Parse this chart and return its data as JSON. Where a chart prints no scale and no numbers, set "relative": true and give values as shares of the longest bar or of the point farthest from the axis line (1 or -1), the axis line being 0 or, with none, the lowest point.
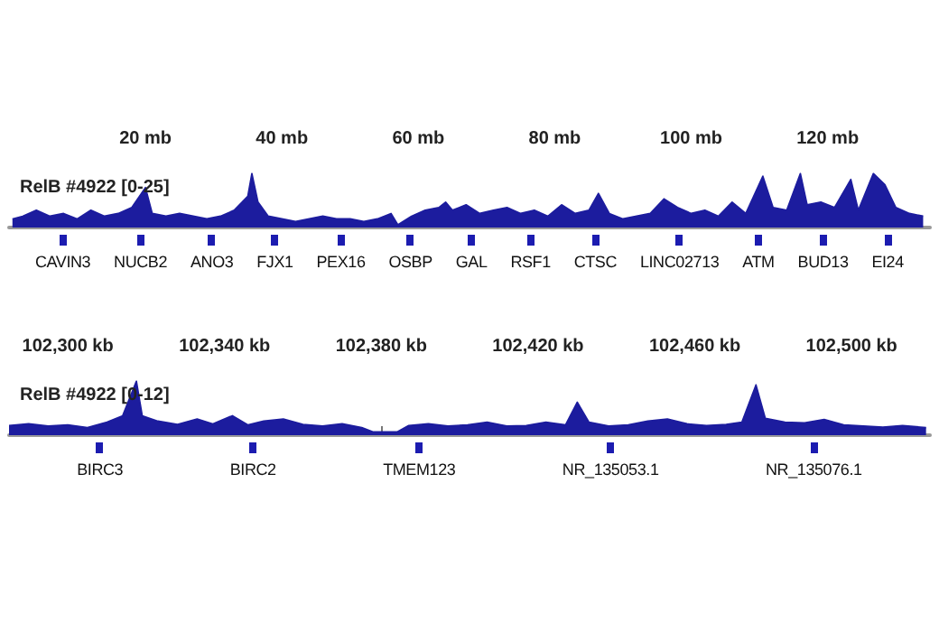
{
  "chart_data": [
    {
      "type": "area",
      "title": "RelB #4922 [0-25]",
      "tick_labels": "x",
      "relative": true,
      "xlim": [
        0,
        135
      ],
      "xticks": [
        {
          "value": 10,
          "label": null
        },
        {
          "value": 20,
          "label": "20 mb"
        },
        {
          "value": 30,
          "label": null
        },
        {
          "value": 40,
          "label": "40 mb"
        },
        {
          "value": 50,
          "label": null
        },
        {
          "value": 60,
          "label": "60 mb"
        },
        {
          "value": 70,
          "label": null
        },
        {
          "value": 80,
          "label": "80 mb"
        },
        {
          "value": 90,
          "label": null
        },
        {
          "value": 100,
          "label": "100 mb"
        },
        {
          "value": 110,
          "label": null
        },
        {
          "value": 120,
          "label": "120 mb"
        },
        {
          "value": 130,
          "label": null
        }
      ],
      "series": [
        {
          "color": "#1c1c9e",
          "x": [
            0.5,
            2,
            4,
            6,
            8,
            10,
            12,
            14,
            16,
            18,
            20,
            21,
            23,
            25,
            27,
            29,
            31,
            33,
            35,
            35.6,
            36.5,
            38,
            40,
            42,
            44,
            46,
            48,
            50,
            52,
            54,
            56,
            57,
            59,
            61,
            63,
            64,
            65,
            67,
            69,
            71,
            73,
            75,
            77,
            79,
            81,
            83,
            85,
            86.4,
            88,
            90,
            92,
            94,
            96,
            98,
            100,
            102,
            104,
            106,
            108,
            110.5,
            112,
            114,
            116,
            117,
            119,
            121,
            123.4,
            124.5,
            126.7,
            128.4,
            130,
            132,
            134
          ],
          "values": [
            0.16,
            0.21,
            0.32,
            0.21,
            0.26,
            0.16,
            0.32,
            0.21,
            0.26,
            0.37,
            0.74,
            0.26,
            0.21,
            0.26,
            0.21,
            0.16,
            0.21,
            0.32,
            0.58,
            1,
            0.47,
            0.21,
            0.16,
            0.11,
            0.16,
            0.21,
            0.16,
            0.16,
            0.11,
            0.16,
            0.26,
            0.05,
            0.21,
            0.32,
            0.37,
            0.47,
            0.32,
            0.42,
            0.26,
            0.32,
            0.37,
            0.26,
            0.32,
            0.21,
            0.42,
            0.26,
            0.32,
            0.63,
            0.26,
            0.16,
            0.21,
            0.26,
            0.53,
            0.37,
            0.26,
            0.32,
            0.21,
            0.47,
            0.26,
            0.95,
            0.37,
            0.32,
            1,
            0.42,
            0.47,
            0.37,
            0.89,
            0.32,
            1,
            0.79,
            0.37,
            0.26,
            0.21
          ]
        }
      ],
      "annotations": [
        "CAVIN3",
        "NUCB2",
        "ANO3",
        "FJX1",
        "PEX16",
        "OSBP",
        "GAL",
        "RSF1",
        "CTSC",
        "LINC02713",
        "ATM",
        "BUD13",
        "EI24"
      ]
    },
    {
      "type": "area",
      "title": "RelB #4922 [0-12]",
      "tick_labels": "x",
      "relative": true,
      "xlim": [
        102285,
        102520
      ],
      "xticks": [
        {
          "value": 102290,
          "label": null
        },
        {
          "value": 102300,
          "label": "102,300 kb"
        },
        {
          "value": 102310,
          "label": null
        },
        {
          "value": 102320,
          "label": null
        },
        {
          "value": 102330,
          "label": null
        },
        {
          "value": 102340,
          "label": "102,340 kb"
        },
        {
          "value": 102350,
          "label": null
        },
        {
          "value": 102360,
          "label": null
        },
        {
          "value": 102370,
          "label": null
        },
        {
          "value": 102380,
          "label": "102,380 kb"
        },
        {
          "value": 102390,
          "label": null
        },
        {
          "value": 102400,
          "label": null
        },
        {
          "value": 102410,
          "label": null
        },
        {
          "value": 102420,
          "label": "102,420 kb"
        },
        {
          "value": 102430,
          "label": null
        },
        {
          "value": 102440,
          "label": null
        },
        {
          "value": 102450,
          "label": null
        },
        {
          "value": 102460,
          "label": "102,460 kb"
        },
        {
          "value": 102470,
          "label": null
        },
        {
          "value": 102480,
          "label": null
        },
        {
          "value": 102490,
          "label": null
        },
        {
          "value": 102500,
          "label": "102,500 kb"
        },
        {
          "value": 102510,
          "label": null
        }
      ],
      "series": [
        {
          "color": "#1c1c9e",
          "x": [
            102285,
            102290,
            102295,
            102300,
            102305,
            102310,
            102314,
            102317.5,
            102319,
            102323,
            102328,
            102333,
            102337,
            102342,
            102346,
            102350,
            102355,
            102360,
            102365,
            102370,
            102375,
            102378,
            102384,
            102387,
            102392,
            102397,
            102402,
            102407,
            102412,
            102417,
            102422,
            102427,
            102430,
            102433,
            102438,
            102443,
            102448,
            102453,
            102458,
            102463,
            102468,
            102472,
            102475.6,
            102478,
            102483,
            102488,
            102493,
            102498,
            102503,
            102508,
            102513,
            102519
          ],
          "values": [
            0.18,
            0.21,
            0.17,
            0.19,
            0.14,
            0.24,
            0.36,
            1,
            0.36,
            0.26,
            0.2,
            0.3,
            0.21,
            0.36,
            0.19,
            0.26,
            0.3,
            0.2,
            0.17,
            0.21,
            0.14,
            0.06,
            0.06,
            0.18,
            0.21,
            0.17,
            0.19,
            0.24,
            0.17,
            0.18,
            0.24,
            0.19,
            0.61,
            0.24,
            0.17,
            0.19,
            0.26,
            0.3,
            0.21,
            0.18,
            0.2,
            0.24,
            0.93,
            0.31,
            0.24,
            0.23,
            0.29,
            0.19,
            0.17,
            0.15,
            0.18,
            0.14
          ]
        }
      ],
      "annotations": [
        "BIRC3",
        "BIRC2",
        "TMEM123",
        "NR_135053.1",
        "NR_135076.1"
      ]
    }
  ]
}
